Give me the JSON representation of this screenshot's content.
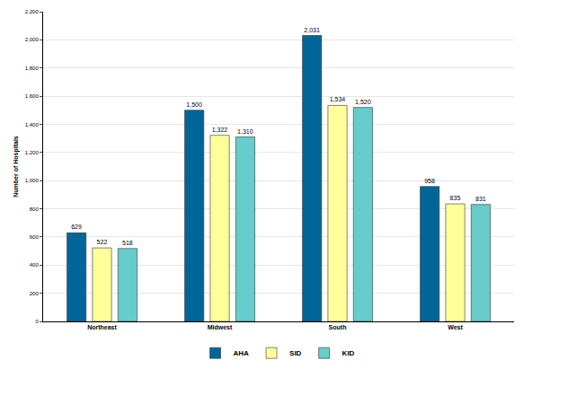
{
  "chart_data": {
    "type": "bar",
    "y_label": "Number of Hospitals",
    "categories": [
      "Northeast",
      "Midwest",
      "South",
      "West"
    ],
    "series": [
      {
        "name": "AHA",
        "color": "#006699",
        "values": [
          629,
          1500,
          2031,
          958
        ],
        "value_labels": [
          "629",
          "1,500",
          "2,031",
          "958"
        ]
      },
      {
        "name": "SID",
        "color": "#FFFF99",
        "values": [
          522,
          1322,
          1534,
          835
        ],
        "value_labels": [
          "522",
          "1,322",
          "1,534",
          "835"
        ]
      },
      {
        "name": "KID",
        "color": "#66CCCC",
        "values": [
          518,
          1310,
          1520,
          831
        ],
        "value_labels": [
          "518",
          "1,310",
          "1,520",
          "831"
        ]
      }
    ],
    "ylim": [
      0,
      2200
    ],
    "yticks": [
      0,
      200,
      400,
      600,
      800,
      {
        "value": 1000,
        "label": "1,000"
      },
      {
        "value": 1200,
        "label": "1,200"
      },
      {
        "value": 1400,
        "label": "1,400"
      },
      {
        "value": 1600,
        "label": "1,600"
      },
      {
        "value": 1800,
        "label": "1,800"
      },
      {
        "value": 2000,
        "label": "2,000"
      },
      {
        "value": 2200,
        "label": "2,200"
      }
    ],
    "grid": true,
    "legend": "bottom",
    "data_labels": true
  }
}
